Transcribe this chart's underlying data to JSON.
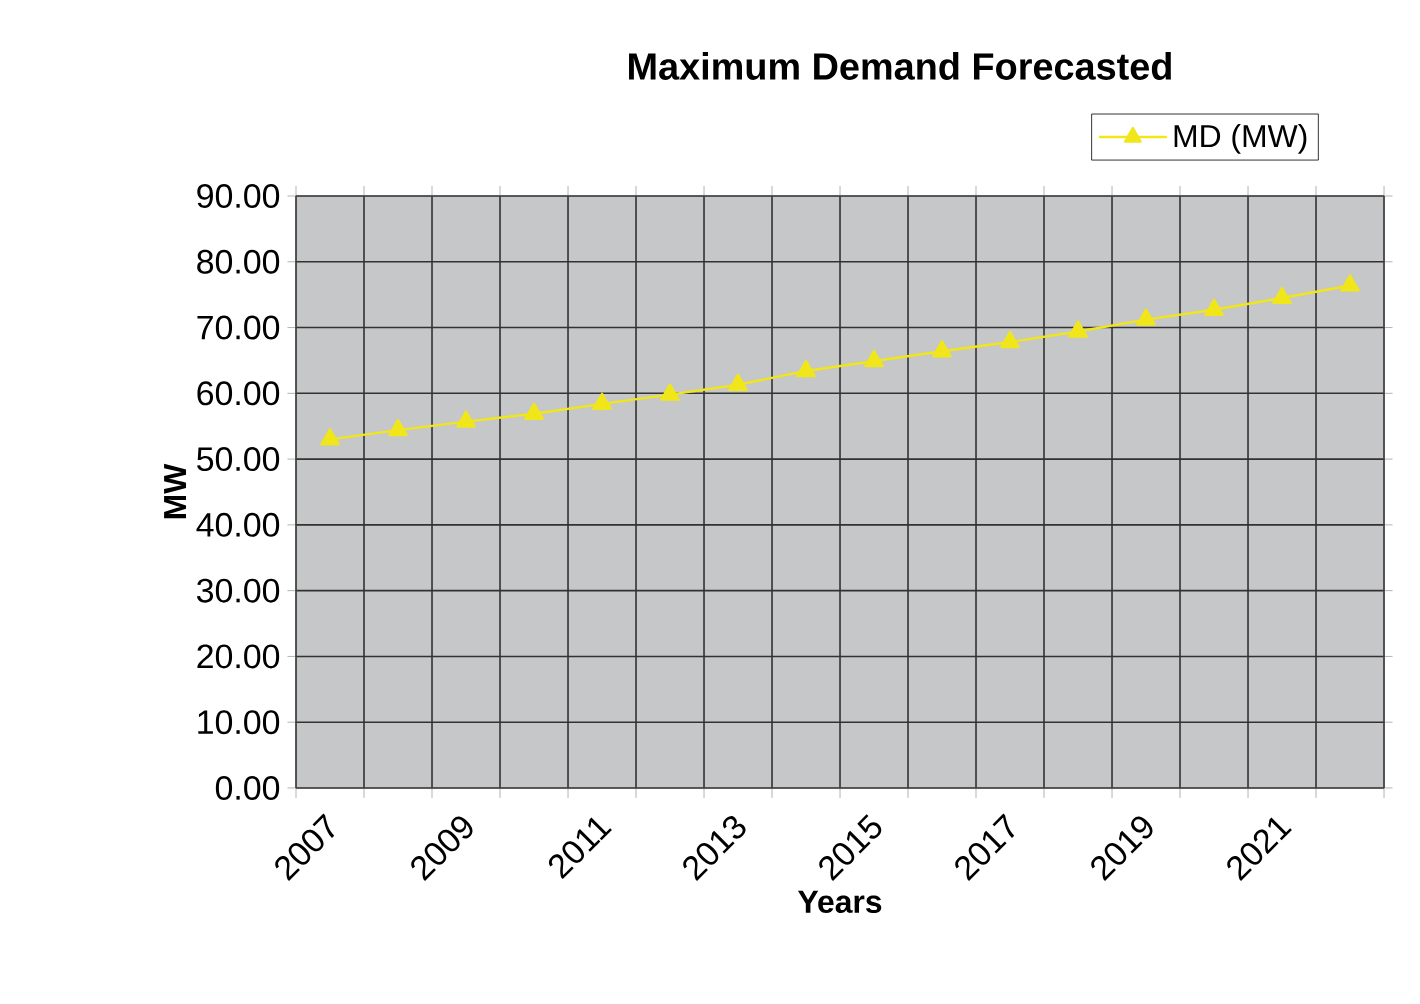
{
  "chart_data": {
    "type": "line",
    "title": "Maximum Demand Forecasted",
    "xlabel": "Years",
    "ylabel": "MW",
    "categories": [
      "2007",
      null,
      "2009",
      null,
      "2011",
      null,
      "2013",
      null,
      "2015",
      null,
      "2017",
      null,
      "2019",
      null,
      "2021",
      null
    ],
    "series": [
      {
        "name": "MD (MW)",
        "color": "#f0e619",
        "values": [
          53.0,
          54.4,
          55.7,
          56.9,
          58.4,
          59.8,
          61.3,
          63.4,
          64.9,
          66.4,
          67.8,
          69.4,
          71.2,
          72.7,
          74.5,
          76.4
        ]
      }
    ],
    "ylim": [
      0,
      90
    ],
    "yticks": [
      {
        "value": 0,
        "label": "0.00"
      },
      {
        "value": 10,
        "label": "10.00"
      },
      {
        "value": 20,
        "label": "20.00"
      },
      {
        "value": 30,
        "label": "30.00"
      },
      {
        "value": 40,
        "label": "40.00"
      },
      {
        "value": 50,
        "label": "50.00"
      },
      {
        "value": 60,
        "label": "60.00"
      },
      {
        "value": 70,
        "label": "70.00"
      },
      {
        "value": 80,
        "label": "80.00"
      },
      {
        "value": 90,
        "label": "90.00"
      }
    ],
    "grid": true,
    "legend": "top right",
    "marker": "triangle",
    "line_style": "solid"
  }
}
